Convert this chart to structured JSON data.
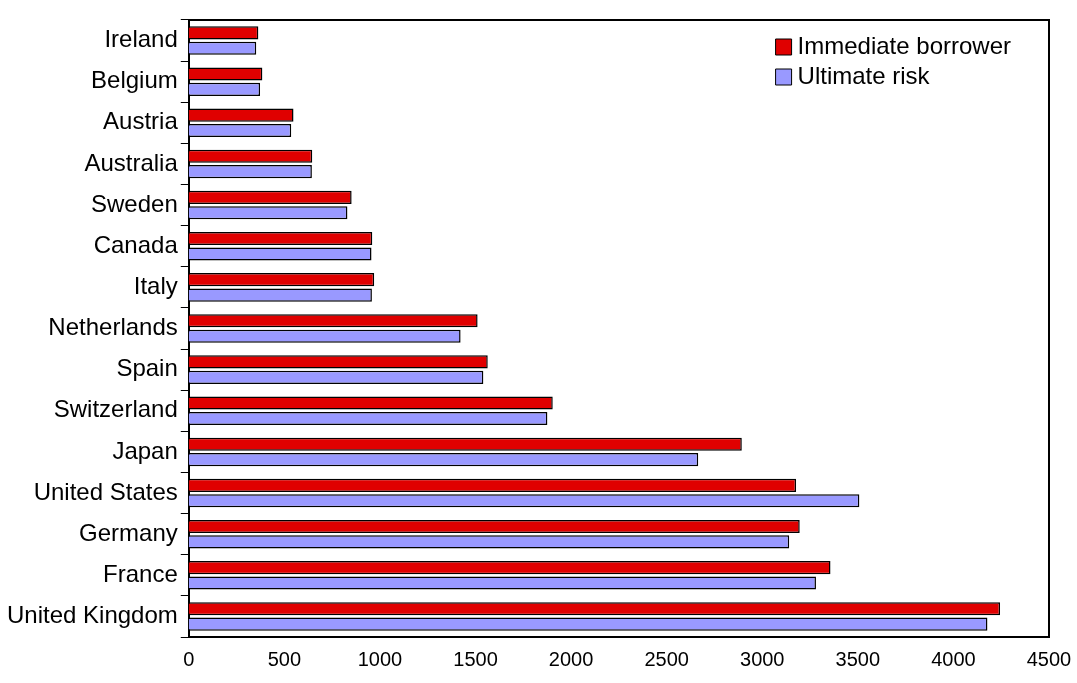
{
  "chart_data": {
    "type": "bar",
    "orientation": "horizontal",
    "categories": [
      "Ireland",
      "Belgium",
      "Austria",
      "Australia",
      "Sweden",
      "Canada",
      "Italy",
      "Netherlands",
      "Spain",
      "Switzerland",
      "Japan",
      "United States",
      "Germany",
      "France",
      "United Kingdom"
    ],
    "series": [
      {
        "name": "Immediate borrower",
        "color": "#e00000",
        "values": [
          364,
          385,
          548,
          646,
          852,
          960,
          970,
          1511,
          1564,
          1904,
          2893,
          3177,
          3196,
          3357,
          4244
        ]
      },
      {
        "name": "Ultimate risk",
        "color": "#9999ff",
        "values": [
          353,
          373,
          536,
          644,
          830,
          956,
          958,
          1422,
          1541,
          1876,
          2665,
          3508,
          3141,
          3281,
          4178
        ]
      }
    ],
    "xlim": [
      0,
      4500
    ],
    "xticks": [
      0,
      500,
      1000,
      1500,
      2000,
      2500,
      3000,
      3500,
      4000,
      4500
    ],
    "grid": false,
    "legend": "top right"
  }
}
